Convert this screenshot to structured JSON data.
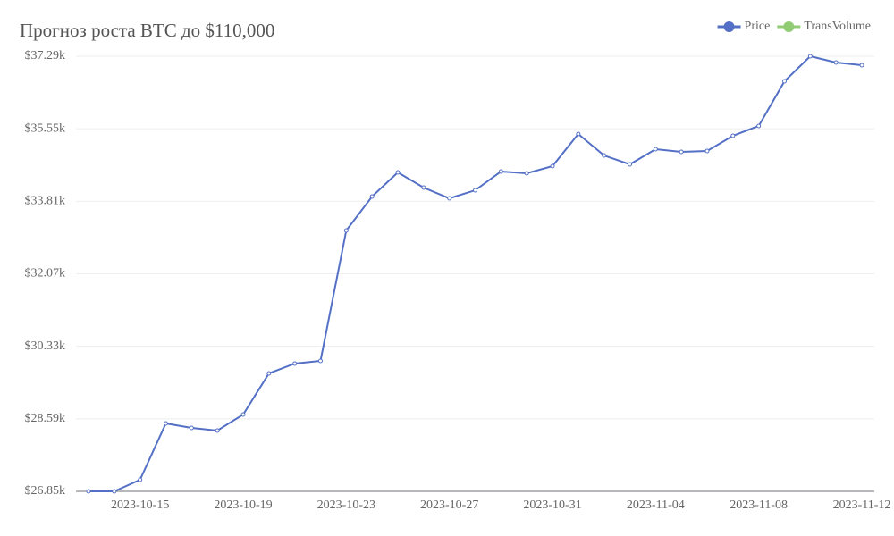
{
  "chart_data": {
    "type": "line",
    "title": "Прогноз роста BTC до $110,000",
    "categories": [
      null,
      null,
      "2023-10-15",
      null,
      null,
      null,
      "2023-10-19",
      null,
      null,
      null,
      "2023-10-23",
      null,
      null,
      null,
      "2023-10-27",
      null,
      null,
      null,
      "2023-10-31",
      null,
      null,
      null,
      "2023-11-04",
      null,
      null,
      null,
      "2023-11-08",
      null,
      null,
      null,
      "2023-11-12"
    ],
    "series": [
      {
        "name": "Price",
        "color": "#5470c6",
        "values": [
          26850,
          26850,
          27129,
          28479,
          28372,
          28308,
          28694,
          29680,
          29916,
          29980,
          33110,
          33924,
          34503,
          34139,
          33881,
          34074,
          34524,
          34482,
          34653,
          35425,
          34910,
          34696,
          35060,
          34996,
          35017,
          35382,
          35618,
          36690,
          37290,
          37140,
          37076
        ]
      },
      {
        "name": "TransVolume",
        "color": "#91cc75",
        "values": [
          null,
          null,
          null,
          null,
          null,
          null,
          null,
          null,
          null,
          null,
          null,
          null,
          null,
          null,
          null,
          null,
          null,
          null,
          null,
          null,
          null,
          null,
          null,
          null,
          null,
          null,
          null,
          null,
          null,
          null,
          null
        ]
      }
    ],
    "ylim": [
      26850,
      37290
    ],
    "yticks": [
      {
        "value": 26850,
        "label": "$26.85k"
      },
      {
        "value": 28590,
        "label": "$28.59k"
      },
      {
        "value": 30330,
        "label": "$30.33k"
      },
      {
        "value": 32070,
        "label": "$32.07k"
      },
      {
        "value": 33810,
        "label": "$33.81k"
      },
      {
        "value": 35550,
        "label": "$35.55k"
      },
      {
        "value": 37290,
        "label": "$37.29k"
      }
    ],
    "grid": true,
    "legend": "top-right"
  }
}
